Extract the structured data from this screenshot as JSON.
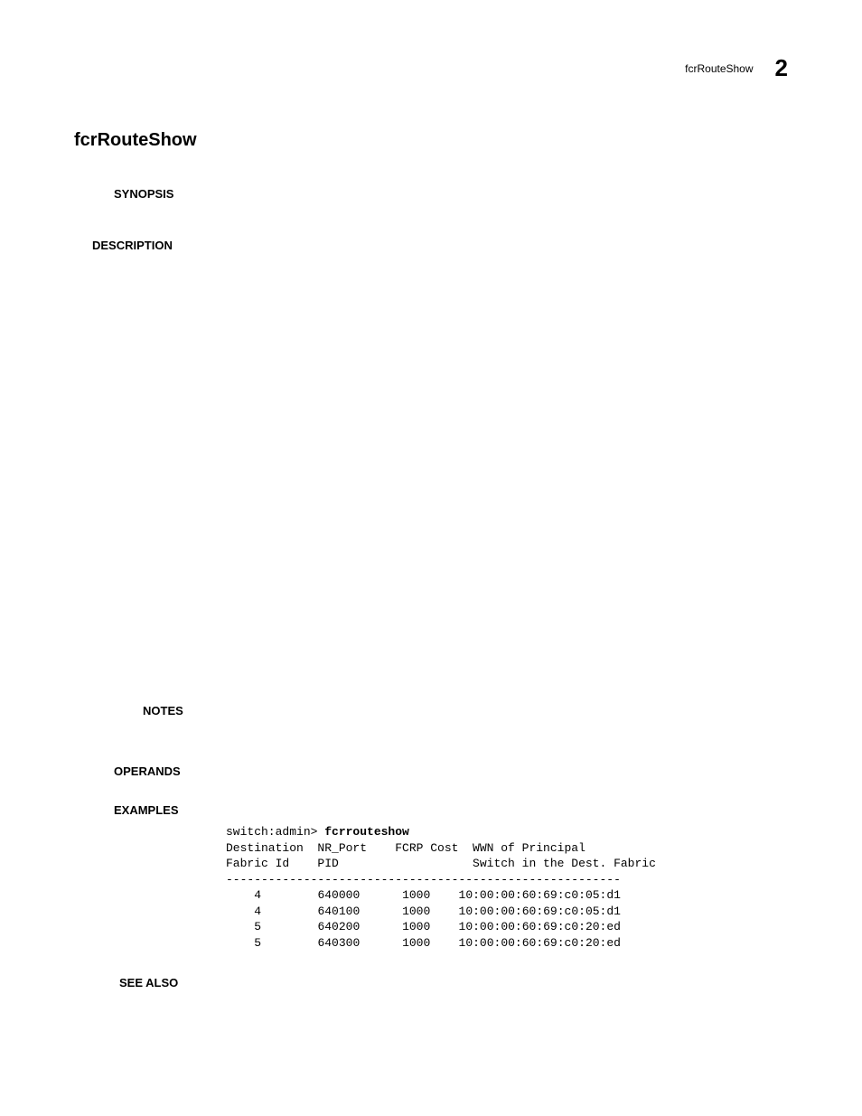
{
  "header": {
    "command": "fcrRouteShow",
    "page_number": "2"
  },
  "title": "fcrRouteShow",
  "sections": {
    "synopsis_label": "SYNOPSIS",
    "description_label": "DESCRIPTION",
    "notes_label": "NOTES",
    "operands_label": "OPERANDS",
    "examples_label": "EXAMPLES",
    "seealso_label": "SEE ALSO"
  },
  "example": {
    "prompt": "switch:admin> ",
    "command": "fcrrouteshow",
    "header_line1": "Destination  NR_Port    FCRP Cost  WWN of Principal",
    "header_line2": "Fabric Id    PID                   Switch in the Dest. Fabric",
    "separator": "--------------------------------------------------------",
    "rows": [
      {
        "fabric_id": "4",
        "pid": "640000",
        "cost": "1000",
        "wwn": "10:00:00:60:69:c0:05:d1"
      },
      {
        "fabric_id": "4",
        "pid": "640100",
        "cost": "1000",
        "wwn": "10:00:00:60:69:c0:05:d1"
      },
      {
        "fabric_id": "5",
        "pid": "640200",
        "cost": "1000",
        "wwn": "10:00:00:60:69:c0:20:ed"
      },
      {
        "fabric_id": "5",
        "pid": "640300",
        "cost": "1000",
        "wwn": "10:00:00:60:69:c0:20:ed"
      }
    ]
  },
  "styling": {
    "background_color": "#ffffff",
    "text_color": "#000000",
    "title_fontsize": 20,
    "section_label_fontsize": 13,
    "header_page_fontsize": 26,
    "header_cmd_fontsize": 12,
    "code_fontsize": 13,
    "code_font_family": "Courier New"
  }
}
